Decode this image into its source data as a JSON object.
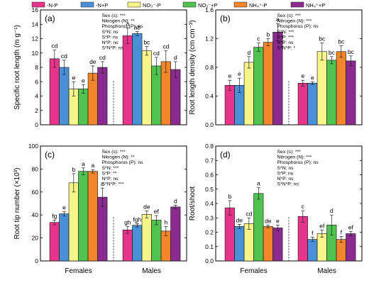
{
  "legend": [
    {
      "label": "-N-P",
      "color": "#e8338a"
    },
    {
      "label": "-N+P",
      "color": "#4a90d9"
    },
    {
      "label": "NO₃⁻-P",
      "color": "#f7f58a"
    },
    {
      "label": "NO₃⁻+P",
      "color": "#4fc24f"
    },
    {
      "label": "NH₄⁺-P",
      "color": "#f3862a"
    },
    {
      "label": "NH₄⁺+P",
      "color": "#8b2a8f"
    }
  ],
  "groups": [
    "Females",
    "Males"
  ],
  "chart_data": [
    {
      "type": "bar",
      "panel": "(a)",
      "ylabel": "Specific root length (m g⁻¹)",
      "ylim": [
        0,
        16
      ],
      "yticks": [
        0,
        2,
        4,
        6,
        8,
        10,
        12,
        14,
        16
      ],
      "categories": [
        "Females",
        "Males"
      ],
      "series_values": [
        [
          9.2,
          12.4
        ],
        [
          8.0,
          12.7
        ],
        [
          5.0,
          10.3
        ],
        [
          5.0,
          8.2
        ],
        [
          7.2,
          8.8
        ],
        [
          8.0,
          7.7
        ]
      ],
      "errors": [
        [
          1.2,
          1.1
        ],
        [
          1.0,
          0.3
        ],
        [
          1.0,
          0.6
        ],
        [
          0.6,
          1.2
        ],
        [
          1.0,
          1.5
        ],
        [
          0.8,
          1.1
        ]
      ],
      "letters": [
        [
          "cd",
          "a"
        ],
        [
          "cd",
          "ab"
        ],
        [
          "e",
          "bc"
        ],
        [
          "e",
          "cd"
        ],
        [
          "de",
          "cd"
        ],
        [
          "cd",
          "d"
        ]
      ],
      "stats": [
        "Sex (s): ***",
        "Nitrogen (N): **",
        "Phosphorus (P): ns",
        "S*N: ns",
        "S*P: ns",
        "N*P: ns",
        "S*N*P: ns"
      ]
    },
    {
      "type": "bar",
      "panel": "(b)",
      "ylabel": "Root length density (cm cm⁻³)",
      "ylim": [
        0,
        1.6
      ],
      "yticks": [
        0.0,
        0.4,
        0.8,
        1.2,
        1.6
      ],
      "categories": [
        "Females",
        "Males"
      ],
      "series_values": [
        [
          0.55,
          0.58
        ],
        [
          0.55,
          0.58
        ],
        [
          0.87,
          1.02
        ],
        [
          1.08,
          0.9
        ],
        [
          1.15,
          1.02
        ],
        [
          1.29,
          0.89
        ]
      ],
      "errors": [
        [
          0.07,
          0.04
        ],
        [
          0.1,
          0.02
        ],
        [
          0.08,
          0.12
        ],
        [
          0.06,
          0.05
        ],
        [
          0.05,
          0.08
        ],
        [
          0.12,
          0.07
        ]
      ],
      "letters": [
        [
          "e",
          "e"
        ],
        [
          "e",
          "e"
        ],
        [
          "d",
          "bc"
        ],
        [
          "c",
          "bc"
        ],
        [
          "b",
          "bc"
        ],
        [
          "a",
          "bc"
        ]
      ],
      "stats": [
        "Sex (s): ***",
        "Nitrogen (N): ***",
        "Phosphorus (P): ns",
        "S*N: ***",
        "S*P: ***",
        "N*P: ns",
        "S*N*P: *"
      ]
    },
    {
      "type": "bar",
      "panel": "(c)",
      "ylabel": "Root tip number (×10³)",
      "ylim": [
        0,
        100
      ],
      "yticks": [
        0,
        20,
        40,
        60,
        80,
        100
      ],
      "categories": [
        "Females",
        "Males"
      ],
      "series_values": [
        [
          33.5,
          27.0
        ],
        [
          41.0,
          31.0
        ],
        [
          68.0,
          40.5
        ],
        [
          78.0,
          35.5
        ],
        [
          78.0,
          26.0
        ],
        [
          55.5,
          47.0
        ]
      ],
      "errors": [
        [
          2.0,
          3.0
        ],
        [
          2.0,
          1.5
        ],
        [
          8.0,
          3.0
        ],
        [
          3.0,
          4.0
        ],
        [
          1.5,
          4.0
        ],
        [
          8.0,
          1.5
        ]
      ],
      "letters": [
        [
          "fg",
          "gh"
        ],
        [
          "e",
          "fgh"
        ],
        [
          "b",
          "de"
        ],
        [
          "a",
          "ef"
        ],
        [
          "a",
          "h"
        ],
        [
          "c",
          "d"
        ]
      ],
      "stats": [
        "Sex (s): ***",
        "Nitrogen (N): **",
        "Phosphorus (P): ns",
        "S*N: ***",
        "S*P: **",
        "N*P: ns",
        "S*N*P: ***"
      ]
    },
    {
      "type": "bar",
      "panel": "(d)",
      "ylabel": "Root/shoot",
      "ylim": [
        0,
        0.8
      ],
      "yticks": [
        0.0,
        0.1,
        0.2,
        0.3,
        0.4,
        0.5,
        0.6,
        0.7,
        0.8
      ],
      "categories": [
        "Females",
        "Males"
      ],
      "series_values": [
        [
          0.37,
          0.31
        ],
        [
          0.24,
          0.15
        ],
        [
          0.26,
          0.19
        ],
        [
          0.47,
          0.25
        ],
        [
          0.24,
          0.15
        ],
        [
          0.23,
          0.19
        ]
      ],
      "errors": [
        [
          0.05,
          0.04
        ],
        [
          0.015,
          0.015
        ],
        [
          0.04,
          0.025
        ],
        [
          0.04,
          0.07
        ],
        [
          0.01,
          0.02
        ],
        [
          0.02,
          0.015
        ]
      ],
      "letters": [
        [
          "b",
          "c"
        ],
        [
          "de",
          "f"
        ],
        [
          "cd",
          "ef"
        ],
        [
          "a",
          "d"
        ],
        [
          "de",
          "f"
        ],
        [
          "e",
          "ef"
        ]
      ],
      "stats": [
        "Sex (s): ***",
        "Nitrogen (N): ***",
        "Phosphorus (P): ns",
        "S*N: ns",
        "S*P: ns",
        "N*P: ns",
        "S*N*P: ns"
      ]
    }
  ]
}
